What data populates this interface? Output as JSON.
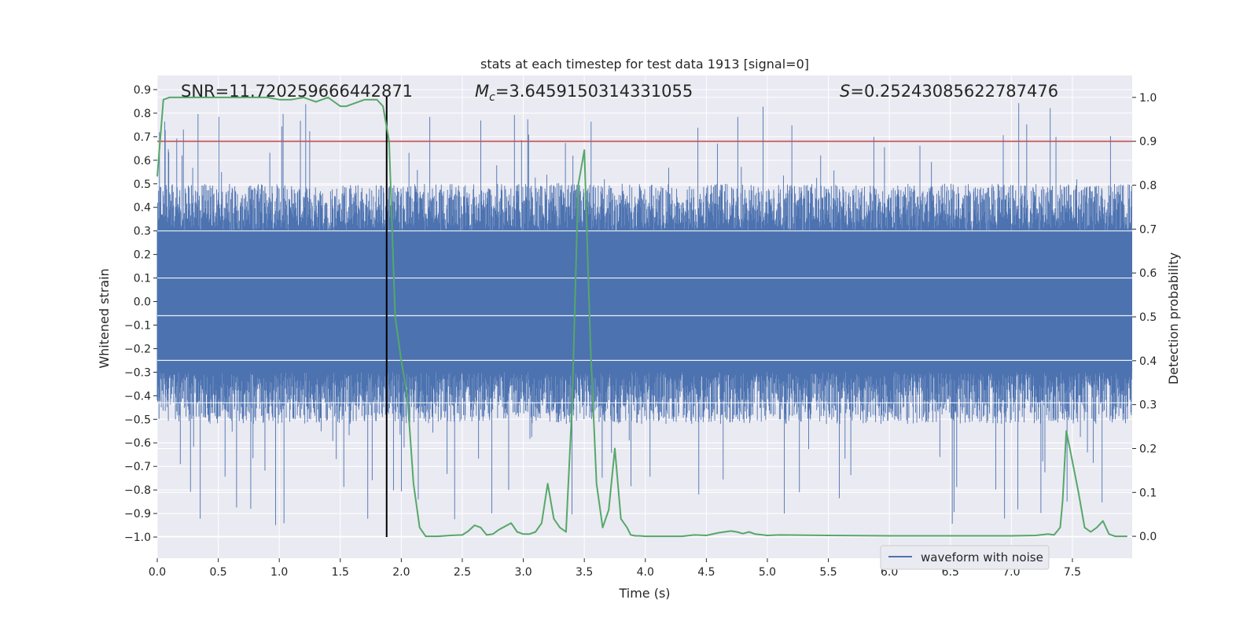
{
  "chart_data": {
    "type": "line",
    "title": "stats at each timestep for test data 1913 [signal=0]",
    "xlabel": "Time (s)",
    "ylabel_left": "Whitened strain",
    "ylabel_right": "Detection probability",
    "xlim": [
      0.0,
      7.99
    ],
    "ylim_left": [
      -1.09,
      0.96
    ],
    "ylim_right": [
      -0.05,
      1.05
    ],
    "x_ticks": [
      "0.0",
      "0.5",
      "1.0",
      "1.5",
      "2.0",
      "2.5",
      "3.0",
      "3.5",
      "4.0",
      "4.5",
      "5.0",
      "5.5",
      "6.0",
      "6.5",
      "7.0",
      "7.5"
    ],
    "y_left_ticks": [
      "0.9",
      "0.8",
      "0.7",
      "0.6",
      "0.5",
      "0.4",
      "0.3",
      "0.2",
      "0.1",
      "0.0",
      "−0.1",
      "−0.2",
      "−0.3",
      "−0.4",
      "−0.5",
      "−0.6",
      "−0.7",
      "−0.8",
      "−0.9",
      "−1.0"
    ],
    "y_right_ticks": [
      "1.0",
      "0.9",
      "0.8",
      "0.7",
      "0.6",
      "0.5",
      "0.4",
      "0.3",
      "0.2",
      "0.1",
      "0.0"
    ],
    "annotations": {
      "snr": "SNR=11.720259666442871",
      "mc_symbol": "M",
      "mc_sub": "c",
      "mc_value": "=3.6459150314331055",
      "s_symbol": "S",
      "s_value": "=0.25243085622787476"
    },
    "legend": {
      "label": "waveform with noise",
      "location": "lower-right"
    },
    "threshold_line": {
      "value_right_axis": 0.9,
      "color": "#c44e52"
    },
    "marker_line": {
      "x": 1.88,
      "y_range_left": [
        -1.0,
        0.87
      ],
      "color": "#000000"
    },
    "waveform": {
      "name": "waveform with noise",
      "color": "#4c72b0",
      "core_min": -0.3,
      "core_max": 0.3,
      "typical_peak": 0.5,
      "max_peak": 0.87,
      "min_trough": -1.0
    },
    "detection_probability": {
      "name": "Detection probability",
      "color": "#55a868",
      "x": [
        0.0,
        0.05,
        0.1,
        0.2,
        0.3,
        0.4,
        0.5,
        0.6,
        0.7,
        0.8,
        0.9,
        1.0,
        1.1,
        1.2,
        1.3,
        1.35,
        1.4,
        1.45,
        1.5,
        1.55,
        1.6,
        1.7,
        1.8,
        1.85,
        1.9,
        1.95,
        2.0,
        2.05,
        2.1,
        2.15,
        2.2,
        2.3,
        2.4,
        2.5,
        2.55,
        2.6,
        2.65,
        2.7,
        2.75,
        2.8,
        2.9,
        2.95,
        3.0,
        3.05,
        3.1,
        3.15,
        3.2,
        3.25,
        3.3,
        3.35,
        3.4,
        3.45,
        3.5,
        3.55,
        3.6,
        3.65,
        3.7,
        3.75,
        3.8,
        3.85,
        3.88,
        3.92,
        3.95,
        4.0,
        4.1,
        4.2,
        4.3,
        4.4,
        4.5,
        4.6,
        4.7,
        4.75,
        4.8,
        4.85,
        4.9,
        5.0,
        5.1,
        5.5,
        6.0,
        6.5,
        7.0,
        7.2,
        7.3,
        7.35,
        7.4,
        7.42,
        7.45,
        7.5,
        7.55,
        7.6,
        7.65,
        7.7,
        7.75,
        7.8,
        7.85,
        7.9,
        7.95
      ],
      "y": [
        0.82,
        0.995,
        1.0,
        1.0,
        1.0,
        1.0,
        1.0,
        1.0,
        1.0,
        1.0,
        1.0,
        0.995,
        0.995,
        1.0,
        0.99,
        0.995,
        1.0,
        0.99,
        0.98,
        0.98,
        0.985,
        0.995,
        0.995,
        0.98,
        0.9,
        0.5,
        0.4,
        0.32,
        0.12,
        0.02,
        0.0,
        0.0,
        0.002,
        0.003,
        0.012,
        0.025,
        0.02,
        0.003,
        0.005,
        0.015,
        0.03,
        0.01,
        0.005,
        0.005,
        0.01,
        0.03,
        0.12,
        0.04,
        0.02,
        0.01,
        0.3,
        0.8,
        0.88,
        0.44,
        0.12,
        0.02,
        0.06,
        0.2,
        0.04,
        0.02,
        0.003,
        0.001,
        0.001,
        0.0,
        0.0,
        0.0,
        0.0,
        0.003,
        0.002,
        0.008,
        0.012,
        0.01,
        0.006,
        0.01,
        0.005,
        0.002,
        0.003,
        0.002,
        0.001,
        0.001,
        0.001,
        0.002,
        0.005,
        0.003,
        0.02,
        0.08,
        0.24,
        0.17,
        0.1,
        0.02,
        0.01,
        0.02,
        0.035,
        0.005,
        0.0,
        0.0,
        0.0
      ]
    }
  }
}
